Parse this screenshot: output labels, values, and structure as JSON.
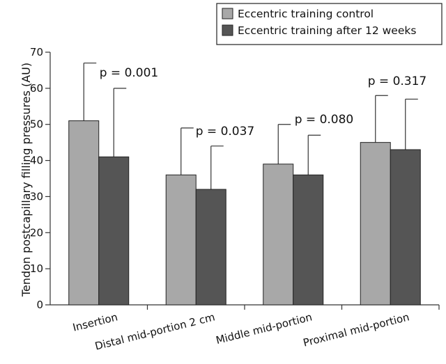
{
  "chart_data": {
    "type": "bar",
    "ylabel": "Tendon postcapillary filling pressures (AU)",
    "ylim": [
      0,
      70
    ],
    "yticks": [
      0,
      10,
      20,
      30,
      40,
      50,
      60,
      70
    ],
    "categories": [
      "Insertion",
      "Distal mid-portion 2 cm",
      "Middle mid-portion",
      "Proximal mid-portion"
    ],
    "series": [
      {
        "name": "Eccentric training control",
        "values": [
          51,
          36,
          39,
          45
        ],
        "errors": [
          16,
          13,
          11,
          13
        ],
        "color": "#a8a8a8"
      },
      {
        "name": "Eccentric training after 12 weeks",
        "values": [
          41,
          32,
          36,
          43
        ],
        "errors": [
          19,
          12,
          11,
          14
        ],
        "color": "#555555"
      }
    ],
    "annotations": [
      "p = 0.001",
      "p = 0.037",
      "p = 0.080",
      "p = 0.317"
    ],
    "legend_position": "top-right",
    "error_bars": "upper"
  }
}
